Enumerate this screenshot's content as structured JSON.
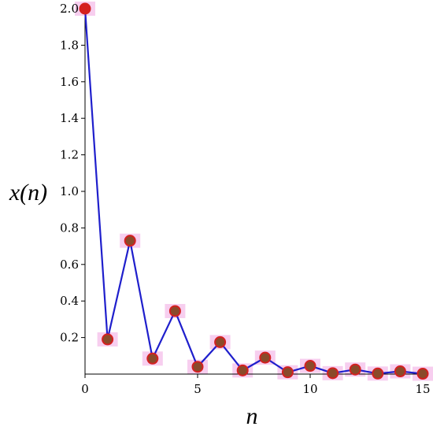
{
  "chart_data": {
    "type": "line",
    "xlabel": "n",
    "ylabel": "x(n)",
    "xlim": [
      0,
      15
    ],
    "ylim": [
      0,
      2.0
    ],
    "x_ticks": [
      "0",
      "5",
      "10",
      "15"
    ],
    "y_ticks": [
      "0.2",
      "0.4",
      "0.6",
      "0.8",
      "1.0",
      "1.2",
      "1.4",
      "1.6",
      "1.8",
      "2.0"
    ],
    "grid": false,
    "series": [
      {
        "x": [
          0,
          1,
          2,
          3,
          4,
          5,
          6,
          7,
          8,
          9,
          10,
          11,
          12,
          13,
          14,
          15
        ],
        "values": [
          2.0,
          0.19,
          0.73,
          0.085,
          0.345,
          0.04,
          0.175,
          0.02,
          0.09,
          0.01,
          0.045,
          0.005,
          0.025,
          0.003,
          0.015,
          0.002
        ],
        "line_color": "#1f1fcc",
        "marker_color": "#d42020",
        "marker_inner_color": "#8a4a2a",
        "halo_color": "#f6c6ec"
      }
    ]
  }
}
